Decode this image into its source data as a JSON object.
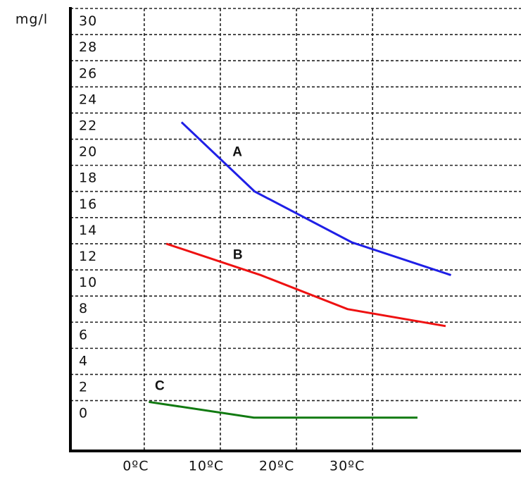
{
  "chart_data": {
    "type": "line",
    "y_label": "mg/l",
    "series": [
      {
        "name": "A",
        "color": "#1f1fe6",
        "x": [
          4.9,
          14.5,
          27.3,
          40.3
        ],
        "values": [
          22.3,
          17.0,
          13.1,
          10.6
        ]
      },
      {
        "name": "B",
        "color": "#ee1111",
        "x": [
          2.9,
          15.3,
          26.7,
          39.6
        ],
        "values": [
          13.0,
          10.6,
          8.0,
          6.7
        ]
      },
      {
        "name": "C",
        "color": "#117a11",
        "x": [
          0.6,
          14.4,
          35.9
        ],
        "values": [
          0.9,
          -0.3,
          -0.3
        ]
      }
    ],
    "xlim": [
      -9.7,
      49.5
    ],
    "xticks": [
      {
        "value": 0,
        "label": "0ºC"
      },
      {
        "value": 10,
        "label": "10ºC"
      },
      {
        "value": 20,
        "label": "20ºC"
      },
      {
        "value": 30,
        "label": "30ºC"
      }
    ],
    "ylim": [
      -2.85,
      31
    ],
    "yticks": [
      0,
      2,
      4,
      6,
      8,
      10,
      12,
      14,
      16,
      18,
      20,
      22,
      24,
      26,
      28,
      30
    ],
    "grid": true
  }
}
